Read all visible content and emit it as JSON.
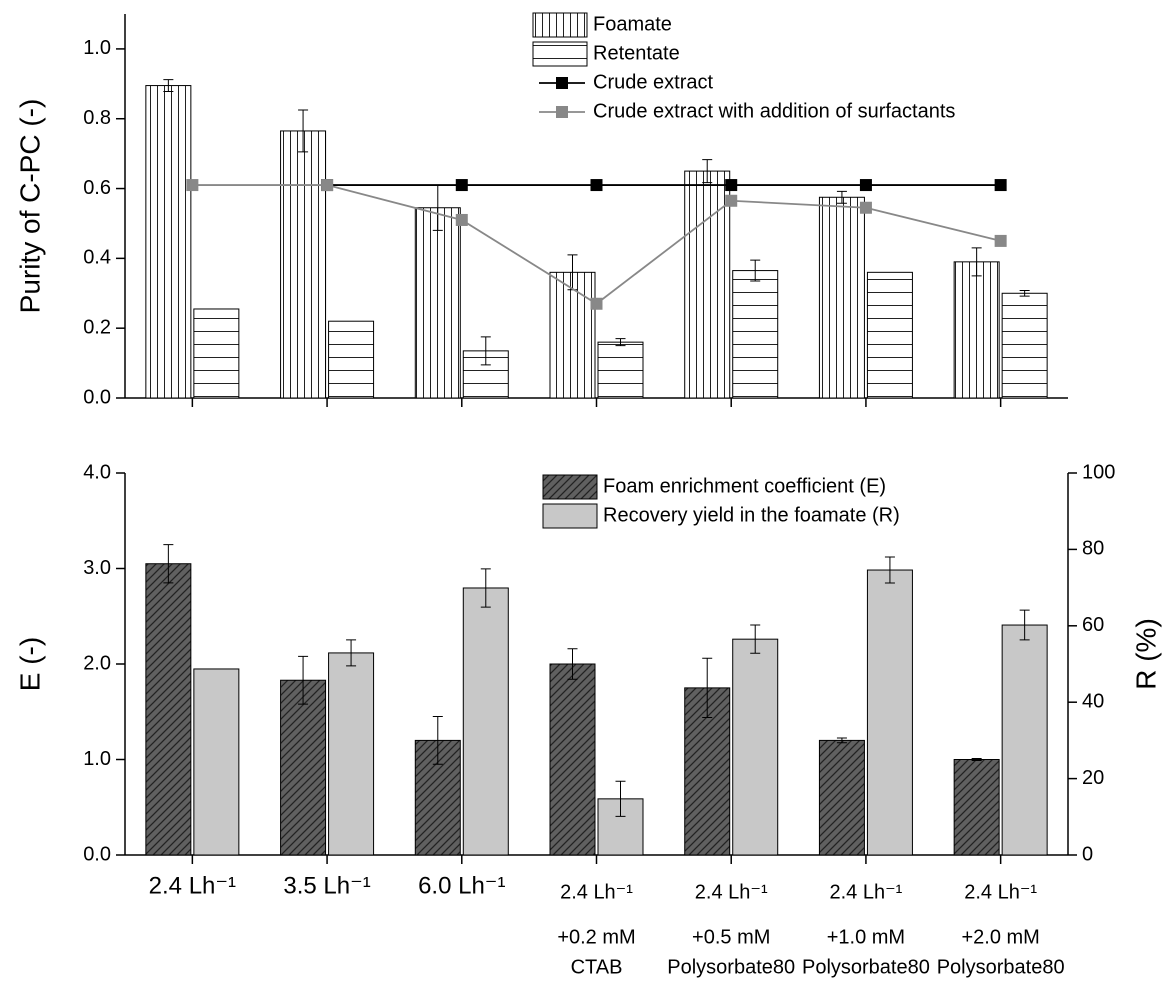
{
  "chart_data": [
    {
      "type": "bar",
      "ylabel": "Purity of C-PC (-)",
      "categories": [
        null,
        null,
        null,
        null,
        null,
        null,
        null
      ],
      "ylim": [
        0,
        1.1
      ],
      "yticks": [
        {
          "value": 0,
          "label": "0.0"
        },
        0.2,
        0.4,
        0.6,
        0.8,
        {
          "value": 1,
          "label": "1.0"
        }
      ],
      "legend": "top",
      "series": [
        {
          "name": "Foamate",
          "color": "#ffffff",
          "hatch": "vertical",
          "values": [
            0.895,
            0.765,
            0.545,
            0.36,
            0.65,
            0.575,
            0.39
          ],
          "errors": [
            0.017,
            0.06,
            0.065,
            0.05,
            0.033,
            0.017,
            0.04
          ]
        },
        {
          "name": "Retentate",
          "color": "#ffffff",
          "hatch": "horizontal",
          "values": [
            0.255,
            0.22,
            0.135,
            0.16,
            0.365,
            0.36,
            0.3
          ],
          "errors": [
            null,
            null,
            0.04,
            0.01,
            0.03,
            null,
            0.008
          ]
        },
        {
          "name": "Crude extract",
          "type": "line",
          "color": "#000000",
          "values": [
            null,
            0.61,
            0.61,
            0.61,
            0.61,
            0.61,
            0.61
          ]
        },
        {
          "name": "Crude extract with addition of surfactants",
          "type": "line",
          "color": "#888888",
          "values": [
            0.61,
            0.61,
            0.51,
            0.27,
            0.565,
            0.545,
            0.45
          ]
        }
      ]
    },
    {
      "type": "bar",
      "ylabel": "E (-)",
      "y2label": "R (%)",
      "categories": [
        [
          "2.4 Lh⁻¹"
        ],
        [
          "3.5 Lh⁻¹"
        ],
        [
          "6.0 Lh⁻¹"
        ],
        [
          "2.4 Lh⁻¹",
          "+0.2 mM",
          "CTAB"
        ],
        [
          "2.4 Lh⁻¹",
          "+0.5 mM",
          "Polysorbate80"
        ],
        [
          "2.4 Lh⁻¹",
          "+1.0 mM",
          "Polysorbate80"
        ],
        [
          "2.4 Lh⁻¹",
          "+2.0 mM",
          "Polysorbate80"
        ]
      ],
      "ylim": [
        0,
        4
      ],
      "yticks": [
        {
          "value": 0,
          "label": "0.0"
        },
        {
          "value": 1,
          "label": "1.0"
        },
        {
          "value": 2,
          "label": "2.0"
        },
        {
          "value": 3,
          "label": "3.0"
        },
        {
          "value": 4,
          "label": "4.0"
        }
      ],
      "y2lim": [
        0,
        100
      ],
      "y2ticks": [
        0,
        20,
        40,
        60,
        80,
        100
      ],
      "legend": "top",
      "series": [
        {
          "name": "Foam enrichment coefficient (E)",
          "color": "#606060",
          "hatch": "diagonal",
          "values": [
            3.05,
            1.83,
            1.2,
            2.0,
            1.75,
            1.2,
            1.0
          ],
          "errors": [
            0.2,
            0.25,
            0.25,
            0.16,
            0.31,
            0.025,
            0.01
          ]
        },
        {
          "name": "Recovery yield in the foamate (R)",
          "color": "#c8c8c8",
          "axis": "y2",
          "values": [
            48.7,
            52.9,
            69.9,
            14.7,
            56.5,
            74.6,
            60.2
          ],
          "errors": [
            null,
            3.4,
            5,
            4.6,
            3.7,
            3.4,
            3.9
          ]
        }
      ]
    }
  ]
}
